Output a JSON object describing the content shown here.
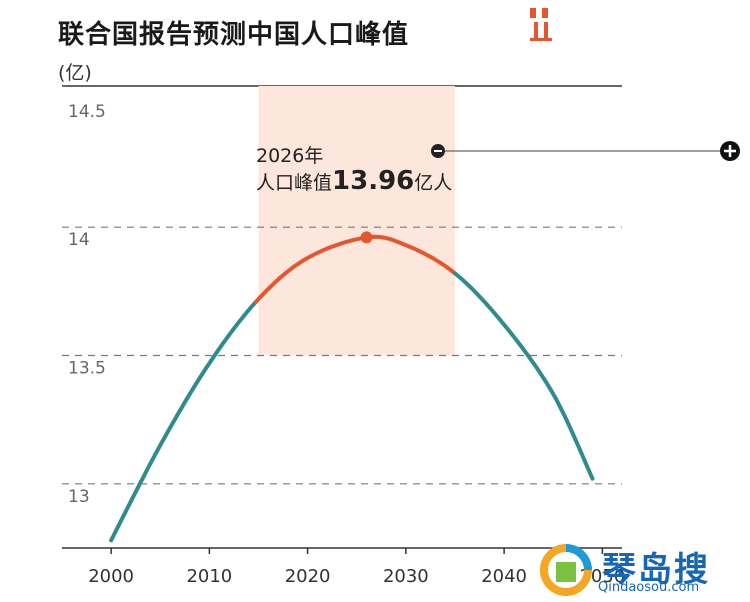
{
  "title": "联合国报告预测中国人口峰值",
  "unit": "(亿)",
  "annotation": {
    "year_label": "2026年",
    "peak_prefix": "人口峰值",
    "peak_value": "13.96",
    "peak_suffix": "亿人"
  },
  "watermark": {
    "brand": "琴岛搜",
    "domain": "Qindaosou.com"
  },
  "colors": {
    "teal": "#2f8b8e",
    "peak_orange": "#e4572e",
    "highlight": "#fde7dc",
    "grid": "#7a7a7a"
  },
  "chart_data": {
    "type": "line",
    "title": "联合国报告预测中国人口峰值",
    "ylabel": "(亿)",
    "xlabel": "",
    "x_ticks": [
      "2000",
      "2010",
      "2020",
      "2030",
      "2040",
      "2050"
    ],
    "y_ticks": [
      "13",
      "13.5",
      "14",
      "14.5"
    ],
    "xlim": [
      1995,
      2052
    ],
    "ylim": [
      12.75,
      14.55
    ],
    "highlight_range": [
      2015,
      2035
    ],
    "peak": {
      "x": 2026,
      "y": 13.96
    },
    "series": [
      {
        "color": "#2f8b8e",
        "highlight_color": "#e4572e",
        "points": [
          [
            2000,
            12.78
          ],
          [
            2005,
            13.15
          ],
          [
            2010,
            13.47
          ],
          [
            2015,
            13.72
          ],
          [
            2020,
            13.88
          ],
          [
            2026,
            13.96
          ],
          [
            2030,
            13.93
          ],
          [
            2035,
            13.82
          ],
          [
            2040,
            13.62
          ],
          [
            2045,
            13.35
          ],
          [
            2049,
            13.02
          ]
        ]
      }
    ],
    "grid": true
  }
}
